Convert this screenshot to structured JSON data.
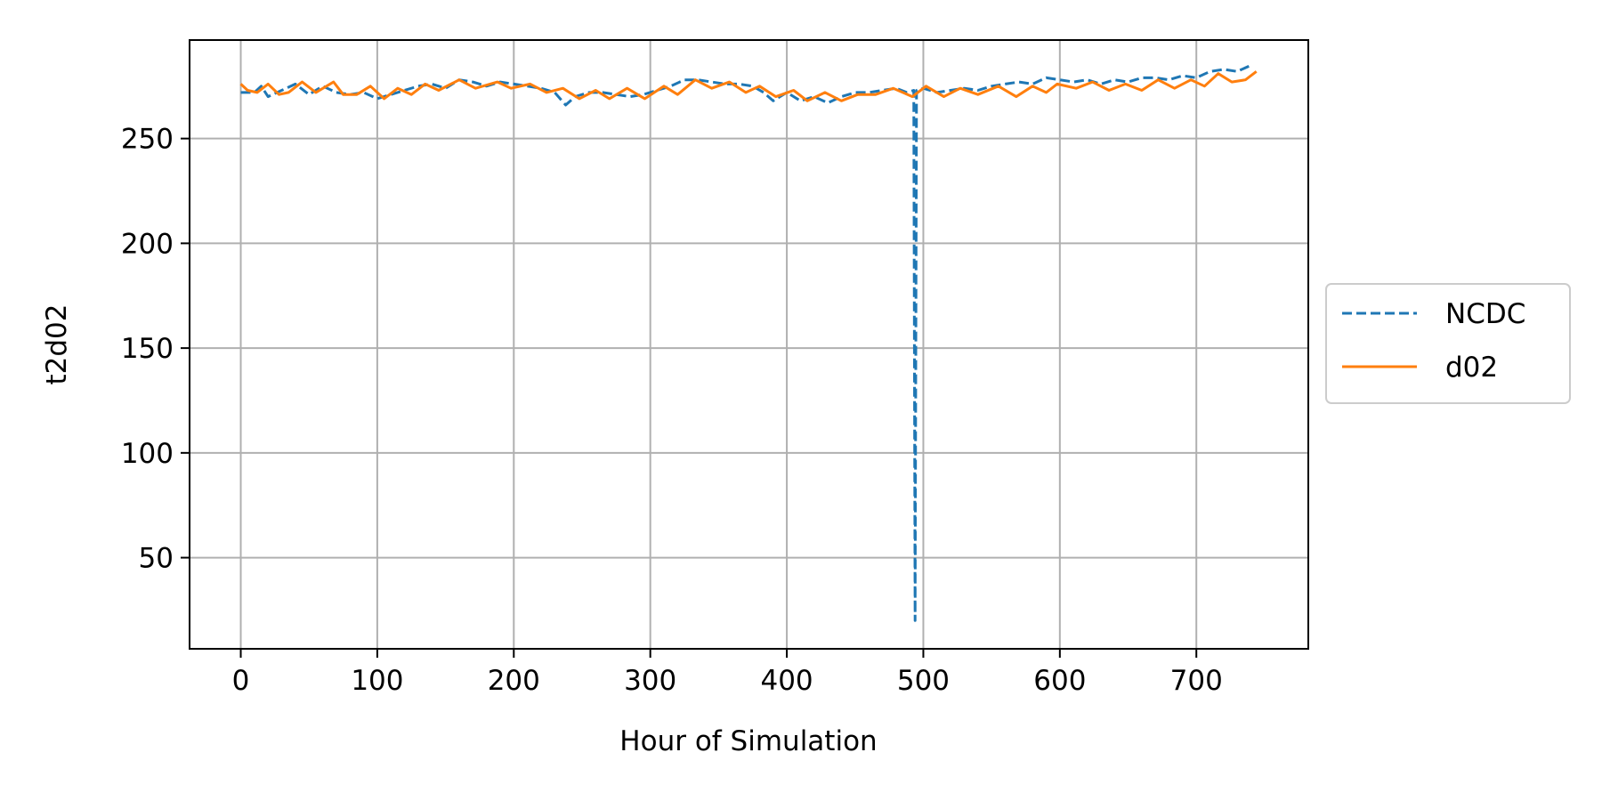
{
  "chart_data": {
    "type": "line",
    "title": "",
    "xlabel": "Hour of Simulation",
    "ylabel": "t2d02",
    "xlim": [
      -37.5,
      782
    ],
    "ylim": [
      6.5,
      297
    ],
    "xticks": [
      0,
      100,
      200,
      300,
      400,
      500,
      600,
      700
    ],
    "yticks": [
      50,
      100,
      150,
      200,
      250
    ],
    "grid": true,
    "legend": {
      "position": "outside-right"
    },
    "series": [
      {
        "name": "NCDC",
        "color": "#1f77b4",
        "style": "dashed",
        "points": [
          [
            0,
            272
          ],
          [
            10,
            272
          ],
          [
            15,
            275
          ],
          [
            20,
            270
          ],
          [
            30,
            273
          ],
          [
            40,
            276
          ],
          [
            50,
            271
          ],
          [
            60,
            275
          ],
          [
            70,
            272
          ],
          [
            80,
            271
          ],
          [
            90,
            272
          ],
          [
            100,
            269
          ],
          [
            110,
            271
          ],
          [
            120,
            273
          ],
          [
            130,
            275
          ],
          [
            140,
            276
          ],
          [
            150,
            274
          ],
          [
            160,
            278
          ],
          [
            170,
            277
          ],
          [
            180,
            275
          ],
          [
            190,
            277
          ],
          [
            200,
            276
          ],
          [
            210,
            275
          ],
          [
            220,
            274
          ],
          [
            230,
            272
          ],
          [
            238,
            266
          ],
          [
            245,
            270
          ],
          [
            255,
            272
          ],
          [
            265,
            272
          ],
          [
            275,
            271
          ],
          [
            285,
            270
          ],
          [
            295,
            271
          ],
          [
            305,
            273
          ],
          [
            315,
            275
          ],
          [
            325,
            278
          ],
          [
            335,
            278
          ],
          [
            345,
            277
          ],
          [
            355,
            276
          ],
          [
            365,
            276
          ],
          [
            375,
            275
          ],
          [
            383,
            272
          ],
          [
            390,
            268
          ],
          [
            400,
            272
          ],
          [
            410,
            268
          ],
          [
            420,
            270
          ],
          [
            430,
            267
          ],
          [
            440,
            270
          ],
          [
            450,
            272
          ],
          [
            460,
            272
          ],
          [
            470,
            273
          ],
          [
            480,
            274
          ],
          [
            488,
            272
          ],
          [
            493,
            273
          ],
          [
            494,
            20
          ],
          [
            495,
            273
          ],
          [
            500,
            274
          ],
          [
            510,
            272
          ],
          [
            520,
            273
          ],
          [
            530,
            274
          ],
          [
            540,
            273
          ],
          [
            550,
            275
          ],
          [
            560,
            276
          ],
          [
            570,
            277
          ],
          [
            580,
            276
          ],
          [
            590,
            279
          ],
          [
            600,
            278
          ],
          [
            610,
            277
          ],
          [
            620,
            278
          ],
          [
            630,
            276
          ],
          [
            640,
            278
          ],
          [
            650,
            277
          ],
          [
            660,
            279
          ],
          [
            670,
            279
          ],
          [
            680,
            278
          ],
          [
            690,
            280
          ],
          [
            700,
            279
          ],
          [
            710,
            282
          ],
          [
            720,
            283
          ],
          [
            730,
            282
          ],
          [
            740,
            285
          ]
        ]
      },
      {
        "name": "d02",
        "color": "#ff7f0e",
        "style": "solid",
        "points": [
          [
            0,
            276
          ],
          [
            5,
            273
          ],
          [
            12,
            272
          ],
          [
            20,
            276
          ],
          [
            28,
            271
          ],
          [
            35,
            272
          ],
          [
            45,
            277
          ],
          [
            55,
            272
          ],
          [
            68,
            277
          ],
          [
            75,
            271
          ],
          [
            85,
            271
          ],
          [
            95,
            275
          ],
          [
            105,
            269
          ],
          [
            115,
            274
          ],
          [
            125,
            271
          ],
          [
            135,
            276
          ],
          [
            145,
            273
          ],
          [
            160,
            278
          ],
          [
            172,
            274
          ],
          [
            188,
            277
          ],
          [
            198,
            274
          ],
          [
            212,
            276
          ],
          [
            224,
            272
          ],
          [
            236,
            274
          ],
          [
            248,
            269
          ],
          [
            260,
            273
          ],
          [
            270,
            269
          ],
          [
            283,
            274
          ],
          [
            296,
            269
          ],
          [
            310,
            275
          ],
          [
            320,
            271
          ],
          [
            333,
            278
          ],
          [
            345,
            274
          ],
          [
            358,
            277
          ],
          [
            370,
            272
          ],
          [
            380,
            275
          ],
          [
            392,
            270
          ],
          [
            405,
            273
          ],
          [
            415,
            268
          ],
          [
            428,
            272
          ],
          [
            440,
            268
          ],
          [
            452,
            271
          ],
          [
            465,
            271
          ],
          [
            478,
            274
          ],
          [
            492,
            270
          ],
          [
            502,
            275
          ],
          [
            515,
            270
          ],
          [
            527,
            274
          ],
          [
            540,
            271
          ],
          [
            555,
            275
          ],
          [
            568,
            270
          ],
          [
            580,
            275
          ],
          [
            590,
            272
          ],
          [
            598,
            276
          ],
          [
            612,
            274
          ],
          [
            624,
            277
          ],
          [
            636,
            273
          ],
          [
            648,
            276
          ],
          [
            660,
            273
          ],
          [
            672,
            278
          ],
          [
            684,
            274
          ],
          [
            696,
            278
          ],
          [
            706,
            275
          ],
          [
            716,
            281
          ],
          [
            726,
            277
          ],
          [
            736,
            278
          ],
          [
            744,
            282
          ]
        ]
      }
    ]
  }
}
